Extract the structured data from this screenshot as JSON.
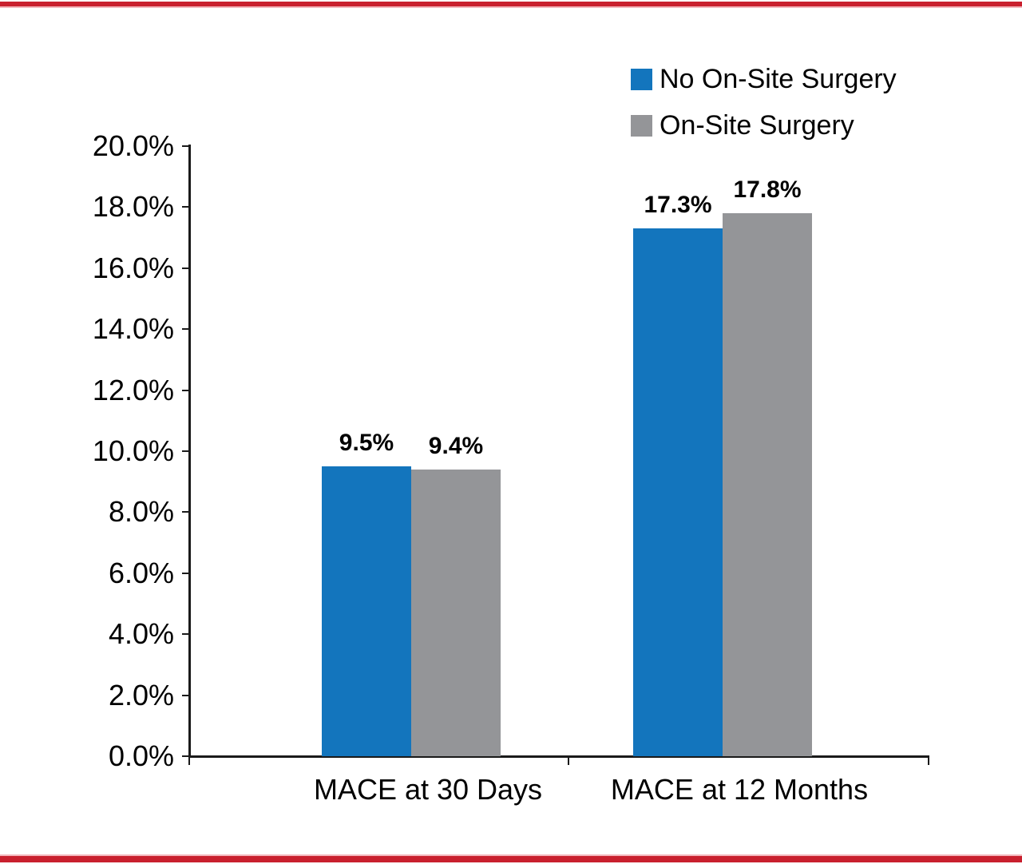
{
  "page": {
    "background": "#FFFFFF",
    "accent_color": "#C9202E",
    "accent_light": "#F3B8BD"
  },
  "chart_data": {
    "type": "bar",
    "title": "",
    "xlabel": "",
    "ylabel": "",
    "categories": [
      "MACE at 30 Days",
      "MACE at 12 Months"
    ],
    "series": [
      {
        "name": "No On-Site Surgery",
        "color": "#1375BD",
        "values": [
          9.5,
          17.3
        ],
        "data_labels": [
          "9.5%",
          "17.3%"
        ]
      },
      {
        "name": "On-Site Surgery",
        "color": "#949598",
        "values": [
          9.4,
          17.8
        ],
        "data_labels": [
          "9.4%",
          "17.8%"
        ]
      }
    ],
    "ylim": [
      0,
      20
    ],
    "ytick_step": 2,
    "ytick_labels": [
      "0.0%",
      "2.0%",
      "4.0%",
      "6.0%",
      "8.0%",
      "10.0%",
      "12.0%",
      "14.0%",
      "16.0%",
      "18.0%",
      "20.0%"
    ],
    "grid": false,
    "legend_position": "top-right"
  }
}
